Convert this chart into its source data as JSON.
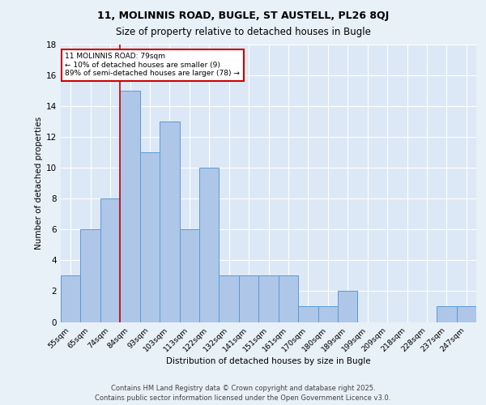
{
  "title1": "11, MOLINNIS ROAD, BUGLE, ST AUSTELL, PL26 8QJ",
  "title2": "Size of property relative to detached houses in Bugle",
  "xlabel": "Distribution of detached houses by size in Bugle",
  "ylabel": "Number of detached properties",
  "categories": [
    "55sqm",
    "65sqm",
    "74sqm",
    "84sqm",
    "93sqm",
    "103sqm",
    "113sqm",
    "122sqm",
    "132sqm",
    "141sqm",
    "151sqm",
    "161sqm",
    "170sqm",
    "180sqm",
    "189sqm",
    "199sqm",
    "209sqm",
    "218sqm",
    "228sqm",
    "237sqm",
    "247sqm"
  ],
  "values": [
    3,
    6,
    8,
    15,
    11,
    13,
    6,
    10,
    3,
    3,
    3,
    3,
    1,
    1,
    2,
    0,
    0,
    0,
    0,
    1,
    1
  ],
  "bar_color": "#aec6e8",
  "bar_edge_color": "#5b9bd5",
  "red_line_index": 2.5,
  "annotation_text": "11 MOLINNIS ROAD: 79sqm\n← 10% of detached houses are smaller (9)\n89% of semi-detached houses are larger (78) →",
  "annotation_box_color": "#ffffff",
  "annotation_box_edge": "#cc0000",
  "ylim": [
    0,
    18
  ],
  "yticks": [
    0,
    2,
    4,
    6,
    8,
    10,
    12,
    14,
    16,
    18
  ],
  "footer": "Contains HM Land Registry data © Crown copyright and database right 2025.\nContains public sector information licensed under the Open Government Licence v3.0.",
  "background_color": "#e8f0f8",
  "plot_background": "#dce8f5",
  "title1_fontsize": 9,
  "title2_fontsize": 8.5,
  "footer_fontsize": 6.0
}
